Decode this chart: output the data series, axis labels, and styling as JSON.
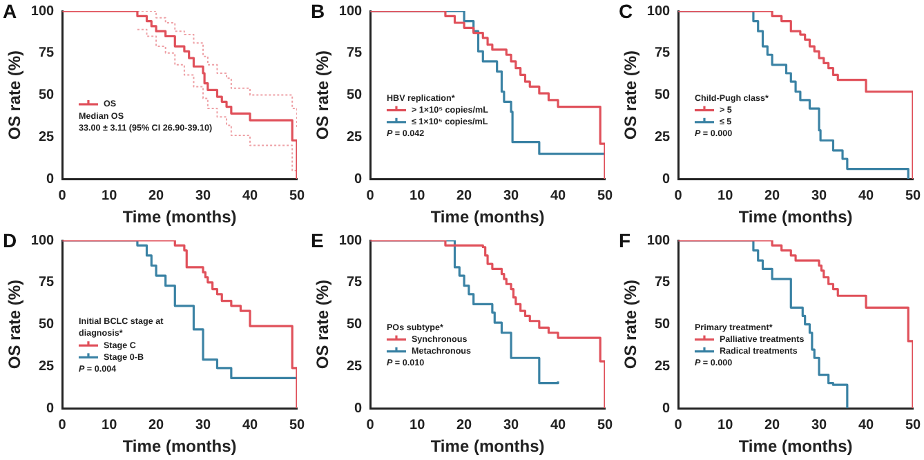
{
  "chart_data": [
    {
      "type": "step",
      "title": "A",
      "xlabel": "Time (months)",
      "ylabel": "OS rate (%)",
      "xlim": [
        0,
        50
      ],
      "xticks": [
        0,
        10,
        20,
        30,
        40,
        50
      ],
      "ylim": [
        0,
        100
      ],
      "yticks": [
        0,
        25,
        50,
        75,
        100
      ],
      "legend": "left",
      "annotations": [
        "Median OS",
        "33.00 ± 3.11 (95% CI 26.90-39.10)"
      ],
      "series": [
        {
          "name": "OS",
          "color": "#e0505a",
          "x": [
            0,
            16,
            18,
            19,
            20,
            22,
            24,
            26,
            27,
            28,
            30,
            30.3,
            31,
            33,
            34,
            35,
            36,
            40,
            49,
            50
          ],
          "values": [
            100,
            97,
            94,
            91,
            88,
            85,
            79,
            76,
            72,
            67,
            63,
            57,
            53,
            49,
            46,
            43,
            39,
            35,
            23,
            0
          ]
        },
        {
          "color": "#eea0a5",
          "line_style": "dotted",
          "x": [
            16,
            20,
            22,
            24,
            26,
            28,
            30,
            31,
            33,
            35,
            36,
            40,
            49,
            50
          ],
          "values": [
            100,
            96,
            93,
            88,
            86,
            81,
            73,
            68,
            63,
            60,
            54,
            50,
            42,
            30
          ]
        },
        {
          "color": "#eea0a5",
          "line_style": "dotted",
          "x": [
            16,
            18,
            20,
            22,
            24,
            26,
            28,
            30,
            31,
            33,
            35,
            36,
            40,
            49,
            50
          ],
          "values": [
            89,
            85,
            79,
            75,
            68,
            62,
            55,
            48,
            42,
            37,
            32,
            26,
            20,
            5,
            0
          ]
        }
      ]
    },
    {
      "type": "step",
      "title": "B",
      "xlabel": "Time (months)",
      "ylabel": "OS rate (%)",
      "xlim": [
        0,
        50
      ],
      "xticks": [
        0,
        10,
        20,
        30,
        40,
        50
      ],
      "ylim": [
        0,
        100
      ],
      "yticks": [
        0,
        25,
        50,
        75,
        100
      ],
      "legend": "left",
      "legend_title": "HBV replication*",
      "annotations": [
        "P = 0.042"
      ],
      "series": [
        {
          "name": "> 1×10⁵ copies/mL",
          "color": "#e0505a",
          "x": [
            0,
            16,
            18,
            20,
            22,
            24,
            25,
            26,
            29,
            30,
            31,
            32,
            33,
            34,
            36,
            38,
            40,
            49,
            50
          ],
          "values": [
            100,
            97,
            93,
            90,
            87,
            84,
            80,
            77,
            74,
            70,
            66,
            62,
            58,
            55,
            51,
            47,
            43,
            21,
            0
          ]
        },
        {
          "name": "≤ 1×10⁵ copies/mL",
          "color": "#3a82a4",
          "x": [
            0,
            20,
            22,
            23,
            24,
            27,
            28,
            28.5,
            30,
            30.3,
            36,
            50
          ],
          "values": [
            100,
            94,
            88,
            76,
            70,
            64,
            52,
            46,
            40,
            22,
            15,
            15
          ]
        }
      ]
    },
    {
      "type": "step",
      "title": "C",
      "xlabel": "Time (months)",
      "ylabel": "OS rate (%)",
      "xlim": [
        0,
        50
      ],
      "xticks": [
        0,
        10,
        20,
        30,
        40,
        50
      ],
      "ylim": [
        0,
        100
      ],
      "yticks": [
        0,
        25,
        50,
        75,
        100
      ],
      "legend": "left",
      "legend_title": "Child-Pugh class*",
      "annotations": [
        "P = 0.000"
      ],
      "series": [
        {
          "name": "> 5",
          "color": "#e0505a",
          "x": [
            0,
            20,
            22,
            24,
            26,
            27,
            28,
            29,
            30,
            31,
            32,
            33,
            34,
            40,
            50
          ],
          "values": [
            100,
            97,
            94,
            88,
            86,
            83,
            79,
            76,
            72,
            69,
            66,
            62,
            59,
            52,
            0
          ]
        },
        {
          "name": "≤ 5",
          "color": "#3a82a4",
          "x": [
            0,
            16,
            17,
            18,
            19,
            20,
            23,
            24,
            25,
            26,
            28,
            30,
            30.3,
            33,
            35,
            36,
            49
          ],
          "values": [
            100,
            94,
            88,
            79,
            74,
            68,
            63,
            58,
            52,
            47,
            42,
            29,
            23,
            17,
            12,
            6,
            0
          ]
        }
      ]
    },
    {
      "type": "step",
      "title": "D",
      "xlabel": "Time (months)",
      "ylabel": "OS rate (%)",
      "xlim": [
        0,
        50
      ],
      "xticks": [
        0,
        10,
        20,
        30,
        40,
        50
      ],
      "ylim": [
        0,
        100
      ],
      "yticks": [
        0,
        25,
        50,
        75,
        100
      ],
      "legend": "left",
      "legend_title": "Initial BCLC stage at diagnosis*",
      "annotations": [
        "P = 0.004"
      ],
      "series": [
        {
          "name": "Stage C",
          "color": "#e0505a",
          "x": [
            0,
            24,
            26,
            26.5,
            30,
            30.5,
            31,
            32,
            33,
            34,
            36,
            38,
            40,
            49,
            50
          ],
          "values": [
            100,
            97,
            94,
            84,
            81,
            78,
            75,
            71,
            68,
            64,
            61,
            58,
            49,
            24,
            0
          ]
        },
        {
          "name": "Stage 0-B",
          "color": "#3a82a4",
          "x": [
            0,
            16,
            18,
            19,
            20,
            22,
            24,
            28,
            30,
            33,
            36,
            50
          ],
          "values": [
            100,
            97,
            91,
            85,
            79,
            73,
            61,
            47,
            29,
            24,
            18,
            18
          ]
        }
      ]
    },
    {
      "type": "step",
      "title": "E",
      "xlabel": "Time (months)",
      "ylabel": "OS rate (%)",
      "xlim": [
        0,
        50
      ],
      "xticks": [
        0,
        10,
        20,
        30,
        40,
        50
      ],
      "ylim": [
        0,
        100
      ],
      "yticks": [
        0,
        25,
        50,
        75,
        100
      ],
      "legend": "left",
      "legend_title": "POs subtype*",
      "annotations": [
        "P = 0.010"
      ],
      "series": [
        {
          "name": "Synchronous",
          "color": "#e0505a",
          "x": [
            0,
            16,
            24,
            24.5,
            25,
            26,
            28,
            28.5,
            29,
            30,
            30.5,
            31,
            32,
            33,
            34,
            36,
            38,
            40,
            49,
            50
          ],
          "values": [
            100,
            97,
            96,
            91,
            86,
            83,
            80,
            77,
            74,
            71,
            66,
            62,
            58,
            55,
            52,
            48,
            45,
            42,
            28,
            0
          ]
        },
        {
          "name": "Metachronous",
          "color": "#3a82a4",
          "x": [
            0,
            18,
            19,
            20,
            21,
            22,
            26,
            26.5,
            28,
            30,
            36,
            40
          ],
          "values": [
            100,
            84,
            79,
            73,
            68,
            62,
            57,
            51,
            45,
            30,
            15,
            16
          ]
        }
      ]
    },
    {
      "type": "step",
      "title": "F",
      "xlabel": "Time (months)",
      "ylabel": "OS rate (%)",
      "xlim": [
        0,
        50
      ],
      "xticks": [
        0,
        10,
        20,
        30,
        40,
        50
      ],
      "ylim": [
        0,
        100
      ],
      "yticks": [
        0,
        25,
        50,
        75,
        100
      ],
      "legend": "left",
      "legend_title": "Primary treatment*",
      "annotations": [
        "P = 0.000"
      ],
      "series": [
        {
          "name": "Palliative treatments",
          "color": "#e0505a",
          "x": [
            0,
            20,
            22,
            24,
            25,
            30,
            30.5,
            31,
            32,
            33,
            34,
            40,
            49,
            50
          ],
          "values": [
            100,
            97,
            94,
            91,
            88,
            85,
            82,
            78,
            74,
            71,
            67,
            60,
            40,
            0
          ]
        },
        {
          "name": "Radical treatments",
          "color": "#3a82a4",
          "x": [
            0,
            16,
            17,
            18,
            20,
            24,
            26.5,
            27,
            28,
            28.5,
            29,
            30,
            32,
            33,
            36
          ],
          "values": [
            100,
            94,
            88,
            83,
            77,
            60,
            55,
            50,
            45,
            35,
            30,
            20,
            15,
            14,
            0
          ]
        }
      ]
    }
  ]
}
